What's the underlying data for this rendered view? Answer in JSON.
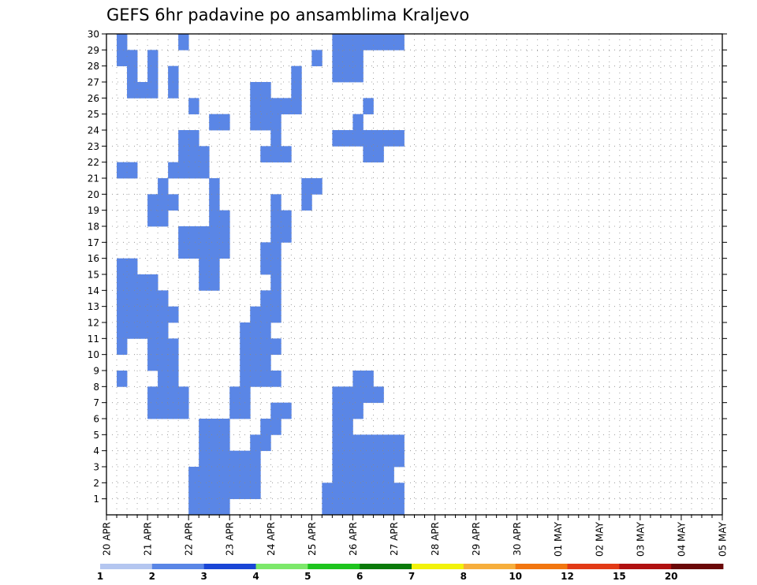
{
  "chart_data": {
    "type": "heatmap",
    "title": "GEFS 6hr padavine po ansamblima Kraljevo",
    "xlabel": "",
    "ylabel": "",
    "x_tick_labels": [
      "20 APR",
      "21 APR",
      "22 APR",
      "23 APR",
      "24 APR",
      "25 APR",
      "26 APR",
      "27 APR",
      "28 APR",
      "29 APR",
      "30 APR",
      "01 MAY",
      "02 MAY",
      "03 MAY",
      "04 MAY",
      "05 MAY"
    ],
    "x_steps": 60,
    "y_tick_labels": [
      "1",
      "2",
      "3",
      "4",
      "5",
      "6",
      "7",
      "8",
      "9",
      "10",
      "11",
      "12",
      "13",
      "14",
      "15",
      "16",
      "17",
      "18",
      "19",
      "20",
      "21",
      "22",
      "23",
      "24",
      "25",
      "26",
      "27",
      "28",
      "29",
      "30"
    ],
    "ylim": [
      0,
      30
    ],
    "grid": true,
    "legend": {
      "placement": "bottom",
      "thresholds": [
        "1",
        "2",
        "3",
        "4",
        "5",
        "6",
        "7",
        "8",
        "10",
        "12",
        "15",
        "20"
      ],
      "colors": [
        "#b4c6f0",
        "#5a86e6",
        "#1a46d6",
        "#7ce86a",
        "#1ec41e",
        "#0a7a0a",
        "#f2f20a",
        "#f6ae3c",
        "#f2760f",
        "#e23a16",
        "#b01010",
        "#6a0808"
      ]
    },
    "cells": [
      [
        1,
        30,
        1
      ],
      [
        7,
        30,
        1
      ],
      [
        22,
        30,
        1
      ],
      [
        23,
        30,
        1
      ],
      [
        24,
        30,
        1
      ],
      [
        25,
        30,
        1
      ],
      [
        26,
        30,
        1
      ],
      [
        27,
        30,
        1
      ],
      [
        28,
        30,
        1
      ],
      [
        1,
        29,
        1
      ],
      [
        2,
        29,
        1
      ],
      [
        4,
        29,
        1
      ],
      [
        20,
        29,
        1
      ],
      [
        22,
        29,
        1
      ],
      [
        23,
        29,
        1
      ],
      [
        24,
        29,
        1
      ],
      [
        2,
        28,
        1
      ],
      [
        4,
        28,
        1
      ],
      [
        6,
        28,
        1
      ],
      [
        18,
        28,
        1
      ],
      [
        22,
        28,
        1
      ],
      [
        23,
        28,
        1
      ],
      [
        24,
        28,
        1
      ],
      [
        2,
        27,
        1
      ],
      [
        3,
        27,
        1
      ],
      [
        4,
        27,
        1
      ],
      [
        6,
        27,
        1
      ],
      [
        14,
        27,
        1
      ],
      [
        15,
        27,
        1
      ],
      [
        18,
        27,
        1
      ],
      [
        8,
        26,
        1
      ],
      [
        14,
        26,
        1
      ],
      [
        15,
        26,
        1
      ],
      [
        16,
        26,
        1
      ],
      [
        17,
        26,
        1
      ],
      [
        18,
        26,
        1
      ],
      [
        25,
        26,
        1
      ],
      [
        10,
        25,
        1
      ],
      [
        11,
        25,
        1
      ],
      [
        14,
        25,
        1
      ],
      [
        15,
        25,
        1
      ],
      [
        16,
        25,
        1
      ],
      [
        24,
        25,
        1
      ],
      [
        7,
        24,
        1
      ],
      [
        8,
        24,
        1
      ],
      [
        16,
        24,
        1
      ],
      [
        22,
        24,
        1
      ],
      [
        23,
        24,
        1
      ],
      [
        24,
        24,
        1
      ],
      [
        25,
        24,
        1
      ],
      [
        26,
        24,
        1
      ],
      [
        27,
        24,
        1
      ],
      [
        28,
        24,
        1
      ],
      [
        7,
        23,
        1
      ],
      [
        8,
        23,
        1
      ],
      [
        9,
        23,
        1
      ],
      [
        15,
        23,
        1
      ],
      [
        16,
        23,
        1
      ],
      [
        17,
        23,
        1
      ],
      [
        25,
        23,
        1
      ],
      [
        26,
        23,
        1
      ],
      [
        1,
        22,
        1
      ],
      [
        2,
        22,
        1
      ],
      [
        6,
        22,
        1
      ],
      [
        7,
        22,
        1
      ],
      [
        8,
        22,
        1
      ],
      [
        9,
        22,
        1
      ],
      [
        5,
        21,
        1
      ],
      [
        10,
        21,
        1
      ],
      [
        19,
        21,
        1
      ],
      [
        20,
        21,
        1
      ],
      [
        4,
        20,
        1
      ],
      [
        5,
        20,
        1
      ],
      [
        6,
        20,
        1
      ],
      [
        10,
        20,
        1
      ],
      [
        16,
        20,
        1
      ],
      [
        19,
        20,
        1
      ],
      [
        4,
        19,
        1
      ],
      [
        5,
        19,
        1
      ],
      [
        10,
        19,
        1
      ],
      [
        11,
        19,
        1
      ],
      [
        16,
        19,
        1
      ],
      [
        17,
        19,
        1
      ],
      [
        7,
        18,
        1
      ],
      [
        8,
        18,
        1
      ],
      [
        9,
        18,
        1
      ],
      [
        10,
        18,
        1
      ],
      [
        11,
        18,
        1
      ],
      [
        16,
        18,
        1
      ],
      [
        17,
        18,
        1
      ],
      [
        7,
        17,
        1
      ],
      [
        8,
        17,
        1
      ],
      [
        9,
        17,
        1
      ],
      [
        10,
        17,
        1
      ],
      [
        11,
        17,
        1
      ],
      [
        15,
        17,
        1
      ],
      [
        16,
        17,
        1
      ],
      [
        1,
        16,
        1
      ],
      [
        2,
        16,
        1
      ],
      [
        9,
        16,
        1
      ],
      [
        10,
        16,
        1
      ],
      [
        15,
        16,
        1
      ],
      [
        16,
        16,
        1
      ],
      [
        1,
        15,
        1
      ],
      [
        2,
        15,
        1
      ],
      [
        3,
        15,
        1
      ],
      [
        4,
        15,
        1
      ],
      [
        9,
        15,
        1
      ],
      [
        10,
        15,
        1
      ],
      [
        16,
        15,
        1
      ],
      [
        1,
        14,
        1
      ],
      [
        2,
        14,
        1
      ],
      [
        3,
        14,
        1
      ],
      [
        4,
        14,
        1
      ],
      [
        5,
        14,
        1
      ],
      [
        15,
        14,
        1
      ],
      [
        16,
        14,
        1
      ],
      [
        1,
        13,
        1
      ],
      [
        2,
        13,
        1
      ],
      [
        3,
        13,
        1
      ],
      [
        4,
        13,
        1
      ],
      [
        5,
        13,
        1
      ],
      [
        6,
        13,
        1
      ],
      [
        14,
        13,
        1
      ],
      [
        15,
        13,
        1
      ],
      [
        16,
        13,
        1
      ],
      [
        1,
        12,
        1
      ],
      [
        2,
        12,
        1
      ],
      [
        3,
        12,
        1
      ],
      [
        4,
        12,
        1
      ],
      [
        5,
        12,
        1
      ],
      [
        13,
        12,
        1
      ],
      [
        14,
        12,
        1
      ],
      [
        15,
        12,
        1
      ],
      [
        1,
        11,
        1
      ],
      [
        4,
        11,
        1
      ],
      [
        5,
        11,
        1
      ],
      [
        6,
        11,
        1
      ],
      [
        13,
        11,
        1
      ],
      [
        14,
        11,
        1
      ],
      [
        15,
        11,
        1
      ],
      [
        16,
        11,
        1
      ],
      [
        4,
        10,
        1
      ],
      [
        5,
        10,
        1
      ],
      [
        6,
        10,
        1
      ],
      [
        13,
        10,
        1
      ],
      [
        14,
        10,
        1
      ],
      [
        15,
        10,
        1
      ],
      [
        1,
        9,
        1
      ],
      [
        5,
        9,
        1
      ],
      [
        6,
        9,
        1
      ],
      [
        13,
        9,
        1
      ],
      [
        14,
        9,
        1
      ],
      [
        15,
        9,
        1
      ],
      [
        16,
        9,
        1
      ],
      [
        24,
        9,
        1
      ],
      [
        25,
        9,
        1
      ],
      [
        4,
        8,
        1
      ],
      [
        5,
        8,
        1
      ],
      [
        6,
        8,
        1
      ],
      [
        7,
        8,
        1
      ],
      [
        12,
        8,
        1
      ],
      [
        13,
        8,
        1
      ],
      [
        22,
        8,
        1
      ],
      [
        23,
        8,
        1
      ],
      [
        24,
        8,
        1
      ],
      [
        25,
        8,
        1
      ],
      [
        26,
        8,
        1
      ],
      [
        4,
        7,
        1
      ],
      [
        5,
        7,
        1
      ],
      [
        6,
        7,
        1
      ],
      [
        7,
        7,
        1
      ],
      [
        12,
        7,
        1
      ],
      [
        13,
        7,
        1
      ],
      [
        16,
        7,
        1
      ],
      [
        17,
        7,
        1
      ],
      [
        22,
        7,
        1
      ],
      [
        23,
        7,
        1
      ],
      [
        24,
        7,
        1
      ],
      [
        9,
        6,
        1
      ],
      [
        10,
        6,
        1
      ],
      [
        11,
        6,
        1
      ],
      [
        15,
        6,
        1
      ],
      [
        16,
        6,
        1
      ],
      [
        22,
        6,
        1
      ],
      [
        23,
        6,
        1
      ],
      [
        9,
        5,
        1
      ],
      [
        10,
        5,
        1
      ],
      [
        11,
        5,
        1
      ],
      [
        14,
        5,
        1
      ],
      [
        15,
        5,
        1
      ],
      [
        22,
        5,
        1
      ],
      [
        23,
        5,
        1
      ],
      [
        24,
        5,
        1
      ],
      [
        25,
        5,
        1
      ],
      [
        26,
        5,
        1
      ],
      [
        27,
        5,
        1
      ],
      [
        28,
        5,
        1
      ],
      [
        9,
        4,
        1
      ],
      [
        10,
        4,
        1
      ],
      [
        11,
        4,
        1
      ],
      [
        12,
        4,
        1
      ],
      [
        13,
        4,
        1
      ],
      [
        14,
        4,
        1
      ],
      [
        22,
        4,
        1
      ],
      [
        23,
        4,
        1
      ],
      [
        24,
        4,
        1
      ],
      [
        25,
        4,
        1
      ],
      [
        26,
        4,
        1
      ],
      [
        27,
        4,
        1
      ],
      [
        28,
        4,
        1
      ],
      [
        8,
        3,
        1
      ],
      [
        9,
        3,
        1
      ],
      [
        10,
        3,
        1
      ],
      [
        11,
        3,
        1
      ],
      [
        12,
        3,
        1
      ],
      [
        13,
        3,
        1
      ],
      [
        14,
        3,
        1
      ],
      [
        22,
        3,
        1
      ],
      [
        23,
        3,
        1
      ],
      [
        24,
        3,
        1
      ],
      [
        25,
        3,
        1
      ],
      [
        26,
        3,
        1
      ],
      [
        27,
        3,
        1
      ],
      [
        8,
        2,
        1
      ],
      [
        9,
        2,
        1
      ],
      [
        10,
        2,
        1
      ],
      [
        11,
        2,
        1
      ],
      [
        12,
        2,
        1
      ],
      [
        13,
        2,
        1
      ],
      [
        14,
        2,
        1
      ],
      [
        21,
        2,
        1
      ],
      [
        22,
        2,
        1
      ],
      [
        23,
        2,
        1
      ],
      [
        24,
        2,
        1
      ],
      [
        25,
        2,
        1
      ],
      [
        26,
        2,
        1
      ],
      [
        27,
        2,
        1
      ],
      [
        28,
        2,
        1
      ],
      [
        8,
        1,
        1
      ],
      [
        9,
        1,
        1
      ],
      [
        10,
        1,
        1
      ],
      [
        11,
        1,
        1
      ],
      [
        21,
        1,
        1
      ],
      [
        22,
        1,
        1
      ],
      [
        23,
        1,
        1
      ],
      [
        24,
        1,
        1
      ],
      [
        25,
        1,
        1
      ],
      [
        26,
        1,
        1
      ],
      [
        27,
        1,
        1
      ],
      [
        28,
        1,
        1
      ]
    ]
  }
}
